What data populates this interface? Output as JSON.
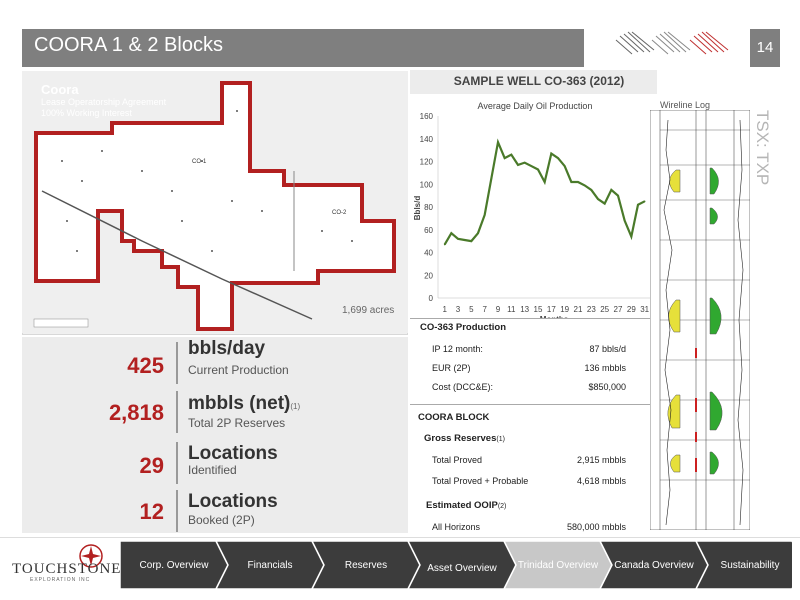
{
  "header": {
    "title": "COORA 1 & 2 Blocks",
    "page_number": "14"
  },
  "map": {
    "title": "Coora",
    "subtitle_line1": "Lease Operatorship Agreement",
    "subtitle_line2": "100% Working Interest",
    "acreage": "1,699 acres",
    "block_labels": [
      "CO-1",
      "CO-2"
    ]
  },
  "stats": [
    {
      "value": "425",
      "unit": "bbls/day",
      "superscript": "",
      "description": "Current Production"
    },
    {
      "value": "2,818",
      "unit": "mbbls (net)",
      "superscript": "(1)",
      "description": "Total 2P Reserves"
    },
    {
      "value": "29",
      "unit": "Locations",
      "superscript": "",
      "description": "Identified"
    },
    {
      "value": "12",
      "unit": "Locations",
      "superscript": "",
      "description": "Booked (2P)"
    }
  ],
  "well": {
    "title": "SAMPLE WELL CO-363 (2012)",
    "wireline_label": "Wireline Log",
    "production_heading": "CO-363 Production",
    "production_rows": [
      {
        "label": "IP 12 month:",
        "value": "87 bbls/d"
      },
      {
        "label": "EUR (2P)",
        "value": "136 mbbls"
      },
      {
        "label": "Cost (DCC&E):",
        "value": "$850,000"
      }
    ],
    "block_heading": "COORA BLOCK",
    "gross_heading": "Gross Reserves",
    "gross_sup": "(1)",
    "gross_rows": [
      {
        "label": "Total Proved",
        "value": "2,915 mbbls"
      },
      {
        "label": "Total Proved + Probable",
        "value": "4,618 mbbls"
      }
    ],
    "ooip_heading": "Estimated OOIP",
    "ooip_sup": "(2)",
    "ooip_rows": [
      {
        "label": "All Horizons",
        "value": "580,000 mbbls"
      }
    ]
  },
  "side_label": "TSX: TXP",
  "nav": {
    "logo": "TOUCHSTONE",
    "logo_sub": "EXPLORATION INC",
    "items": [
      "Corp. Overview",
      "Financials",
      "Reserves",
      "Asset Overview",
      "Trinidad Overview",
      "Canada Overview",
      "Sustainability"
    ],
    "active_index": 4
  },
  "colors": {
    "accent": "#b22020",
    "title_bar": "#7f7f7f",
    "line": "#4a7a2a"
  },
  "chart_data": {
    "type": "line",
    "title": "Average Daily Oil Production",
    "xlabel": "Months",
    "ylabel": "Bbls/d",
    "ylim": [
      0,
      160
    ],
    "yticks": [
      0,
      20,
      40,
      60,
      80,
      100,
      120,
      140,
      160
    ],
    "xticks": [
      1,
      3,
      5,
      7,
      9,
      11,
      13,
      15,
      17,
      19,
      21,
      23,
      25,
      27,
      29,
      31
    ],
    "x": [
      1,
      2,
      3,
      4,
      5,
      6,
      7,
      8,
      9,
      10,
      11,
      12,
      13,
      14,
      15,
      16,
      17,
      18,
      19,
      20,
      21,
      22,
      23,
      24,
      25,
      26,
      27,
      28,
      29,
      30,
      31
    ],
    "y": [
      47,
      57,
      52,
      51,
      50,
      57,
      73,
      105,
      137,
      123,
      126,
      117,
      119,
      116,
      113,
      102,
      127,
      123,
      116,
      102,
      102,
      99,
      95,
      87,
      83,
      95,
      90,
      68,
      54,
      82,
      85
    ],
    "grid": false
  }
}
